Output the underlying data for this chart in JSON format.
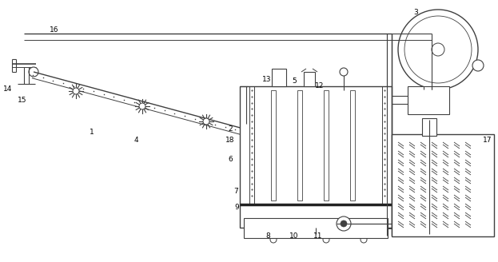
{
  "bg_color": "#ffffff",
  "line_color": "#404040",
  "lw": 0.8
}
